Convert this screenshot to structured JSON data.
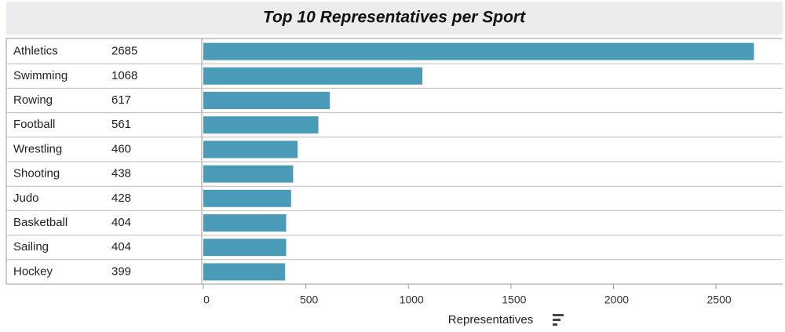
{
  "chart_data": {
    "type": "bar",
    "title": "Top 10 Representatives per Sport",
    "categories": [
      "Athletics",
      "Swimming",
      "Rowing",
      "Football",
      "Wrestling",
      "Shooting",
      "Judo",
      "Basketball",
      "Sailing",
      "Hockey"
    ],
    "values": [
      2685,
      1068,
      617,
      561,
      460,
      438,
      428,
      404,
      404,
      399
    ],
    "color": "#4a9bb8",
    "xlim": [
      0,
      2825
    ],
    "xticks": [
      0,
      500,
      1000,
      1500,
      2000,
      2500
    ],
    "x_label": "Representatives"
  }
}
